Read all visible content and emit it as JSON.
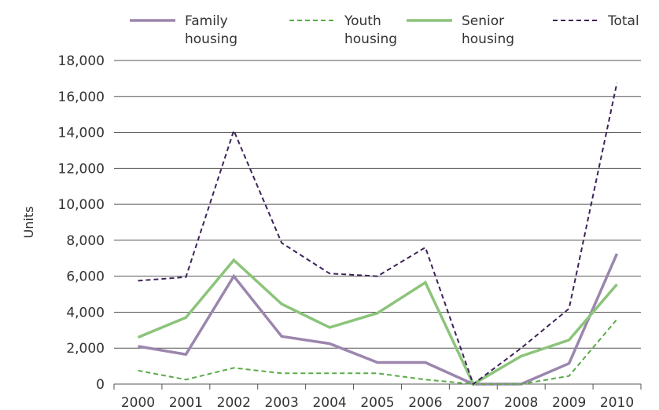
{
  "chart_data": {
    "type": "line",
    "categories": [
      "2000",
      "2001",
      "2002",
      "2003",
      "2004",
      "2005",
      "2006",
      "2007",
      "2008",
      "2009",
      "2010"
    ],
    "ylabel": "Units",
    "ylim": [
      0,
      18000
    ],
    "yticks": [
      0,
      2000,
      4000,
      6000,
      8000,
      10000,
      12000,
      14000,
      16000,
      18000
    ],
    "ytick_labels": [
      "0",
      "2,000",
      "4,000",
      "6,000",
      "8,000",
      "10,000",
      "12,000",
      "14,000",
      "16,000",
      "18,000"
    ],
    "grid": "horizontal",
    "legend_position": "top",
    "series": [
      {
        "name": "Family housing",
        "legend_lines": [
          "Family",
          "housing"
        ],
        "color": "#9b86ad",
        "style": "solid",
        "values": [
          2100,
          1650,
          6000,
          2650,
          2250,
          1200,
          1200,
          0,
          0,
          1150,
          7250
        ]
      },
      {
        "name": "Youth housing",
        "legend_lines": [
          "Youth",
          "housing"
        ],
        "color": "#5aab48",
        "style": "dashed",
        "values": [
          750,
          250,
          900,
          600,
          600,
          600,
          250,
          0,
          0,
          450,
          3600
        ]
      },
      {
        "name": "Senior housing",
        "legend_lines": [
          "Senior",
          "housing"
        ],
        "color": "#8cc47a",
        "style": "solid",
        "values": [
          2600,
          3700,
          6900,
          4450,
          3150,
          3950,
          5650,
          0,
          1550,
          2450,
          5550
        ]
      },
      {
        "name": "Total",
        "legend_lines": [
          "Total"
        ],
        "color": "#3d2358",
        "style": "dashed",
        "values": [
          5750,
          5950,
          14100,
          7850,
          6150,
          6000,
          7600,
          0,
          2000,
          4200,
          16750
        ]
      }
    ]
  }
}
